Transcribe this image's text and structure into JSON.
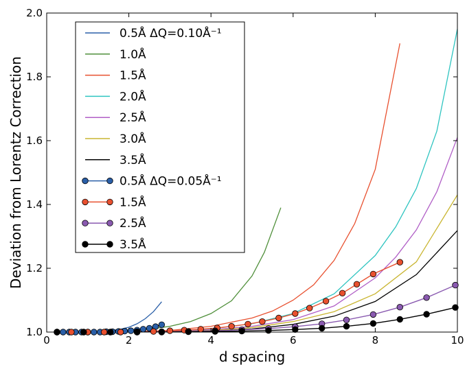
{
  "chart_data": {
    "type": "line",
    "xlabel": "d spacing",
    "ylabel": "Deviation from Lorentz Correction",
    "xlim": [
      0,
      10
    ],
    "ylim": [
      1.0,
      2.0
    ],
    "x_ticks": [
      "0",
      "2",
      "4",
      "6",
      "8",
      "10"
    ],
    "y_ticks": [
      "1.0",
      "1.2",
      "1.4",
      "1.6",
      "1.8",
      "2.0"
    ],
    "grid": false,
    "legend_position": "top-left",
    "series": [
      {
        "name": "0.5Å ΔQ=0.10Å⁻¹",
        "color": "#2a5fa8",
        "marker": "none",
        "x": [
          0.2,
          0.5,
          1.0,
          1.5,
          1.8,
          2.0,
          2.2,
          2.4,
          2.6,
          2.8
        ],
        "y": [
          1.0,
          1.0,
          1.0,
          1.004,
          1.009,
          1.015,
          1.026,
          1.042,
          1.064,
          1.095
        ]
      },
      {
        "name": "1.0Å",
        "color": "#4f8f3a",
        "marker": "none",
        "x": [
          0.2,
          1.0,
          2.0,
          2.5,
          3.0,
          3.5,
          4.0,
          4.5,
          5.0,
          5.3,
          5.7
        ],
        "y": [
          1.0,
          1.0,
          1.004,
          1.009,
          1.018,
          1.033,
          1.058,
          1.098,
          1.176,
          1.25,
          1.39
        ]
      },
      {
        "name": "1.5Å",
        "color": "#e8502f",
        "marker": "none",
        "x": [
          0.2,
          2.0,
          3.0,
          4.0,
          5.0,
          5.5,
          6.0,
          6.5,
          7.0,
          7.5,
          8.0,
          8.6
        ],
        "y": [
          1.0,
          1.001,
          1.005,
          1.018,
          1.044,
          1.066,
          1.1,
          1.148,
          1.225,
          1.34,
          1.51,
          1.905
        ]
      },
      {
        "name": "2.0Å",
        "color": "#2ec4c0",
        "marker": "none",
        "x": [
          0.2,
          2.0,
          3.0,
          4.0,
          5.0,
          6.0,
          7.0,
          8.0,
          8.5,
          9.0,
          9.5,
          10.0
        ],
        "y": [
          1.0,
          1.0,
          1.003,
          1.01,
          1.026,
          1.058,
          1.12,
          1.24,
          1.33,
          1.45,
          1.63,
          1.95
        ]
      },
      {
        "name": "2.5Å",
        "color": "#b05ec6",
        "marker": "none",
        "x": [
          0.2,
          2.0,
          3.0,
          4.0,
          5.0,
          6.0,
          7.0,
          8.0,
          8.5,
          9.0,
          9.5,
          10.0
        ],
        "y": [
          1.0,
          1.0,
          1.002,
          1.007,
          1.018,
          1.039,
          1.082,
          1.17,
          1.235,
          1.32,
          1.44,
          1.61
        ]
      },
      {
        "name": "3.0Å",
        "color": "#c9b530",
        "marker": "none",
        "x": [
          0.2,
          2.0,
          3.0,
          4.0,
          5.0,
          6.0,
          7.0,
          8.0,
          9.0,
          10.0
        ],
        "y": [
          1.0,
          1.0,
          1.001,
          1.005,
          1.014,
          1.033,
          1.064,
          1.12,
          1.22,
          1.43
        ]
      },
      {
        "name": "3.5Å",
        "color": "#000000",
        "marker": "none",
        "x": [
          0.2,
          3.0,
          4.0,
          5.0,
          6.0,
          7.0,
          8.0,
          9.0,
          10.0
        ],
        "y": [
          1.0,
          1.0,
          1.003,
          1.01,
          1.024,
          1.05,
          1.096,
          1.18,
          1.318
        ]
      },
      {
        "name": "0.5Å ΔQ=0.05Å⁻¹",
        "color": "#2a5fa8",
        "marker": "circle",
        "x": [
          0.25,
          0.4,
          0.55,
          0.7,
          0.85,
          1.0,
          1.15,
          1.3,
          1.45,
          1.6,
          1.75,
          1.9,
          2.05,
          2.2,
          2.35,
          2.5,
          2.65,
          2.8
        ],
        "y": [
          1.0,
          1.0,
          1.0,
          1.0,
          1.0,
          1.0,
          1.0,
          1.0,
          1.001,
          1.001,
          1.002,
          1.003,
          1.004,
          1.006,
          1.009,
          1.012,
          1.017,
          1.023
        ]
      },
      {
        "name": "1.5Å",
        "color": "#e8502f",
        "marker": "circle",
        "x": [
          0.25,
          0.6,
          1.0,
          1.4,
          1.8,
          2.2,
          2.6,
          3.0,
          3.35,
          3.75,
          4.15,
          4.5,
          4.9,
          5.25,
          5.65,
          6.05,
          6.4,
          6.8,
          7.2,
          7.55,
          7.95,
          8.6
        ],
        "y": [
          1.0,
          1.0,
          1.0,
          1.0,
          1.0,
          1.001,
          1.002,
          1.004,
          1.006,
          1.009,
          1.013,
          1.018,
          1.025,
          1.033,
          1.044,
          1.058,
          1.075,
          1.097,
          1.122,
          1.15,
          1.182,
          1.219
        ]
      },
      {
        "name": "2.5Å",
        "color": "#8a5ab0",
        "marker": "circle",
        "x": [
          0.25,
          0.9,
          1.55,
          2.2,
          2.8,
          3.45,
          4.1,
          4.75,
          5.4,
          6.05,
          6.7,
          7.3,
          7.95,
          8.6,
          9.25,
          9.95
        ],
        "y": [
          1.0,
          1.0,
          1.0,
          1.0,
          1.001,
          1.002,
          1.004,
          1.007,
          1.011,
          1.017,
          1.026,
          1.038,
          1.055,
          1.078,
          1.108,
          1.147
        ]
      },
      {
        "name": "3.5Å",
        "color": "#000000",
        "marker": "circle",
        "x": [
          0.25,
          0.9,
          1.55,
          2.2,
          2.8,
          3.45,
          4.1,
          4.75,
          5.4,
          6.05,
          6.7,
          7.3,
          7.95,
          8.6,
          9.25,
          9.95
        ],
        "y": [
          1.0,
          1.0,
          1.0,
          1.0,
          1.0,
          1.001,
          1.002,
          1.003,
          1.005,
          1.008,
          1.012,
          1.018,
          1.027,
          1.04,
          1.056,
          1.077
        ]
      }
    ]
  }
}
